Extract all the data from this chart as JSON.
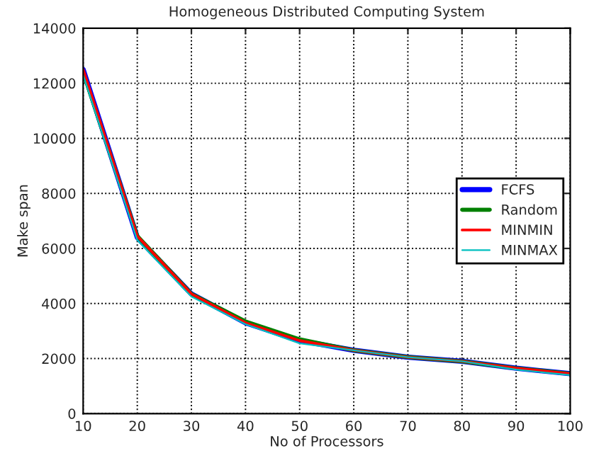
{
  "chart_data": {
    "type": "line",
    "title": "Homogeneous Distributed Computing System",
    "xlabel": "No of Processors",
    "ylabel": "Make span",
    "x": [
      10,
      20,
      30,
      40,
      50,
      60,
      70,
      80,
      90,
      100
    ],
    "series": [
      {
        "name": "FCFS",
        "color": "#0000ff",
        "values": [
          12500,
          6400,
          4350,
          3300,
          2650,
          2300,
          2050,
          1900,
          1650,
          1450
        ]
      },
      {
        "name": "Random",
        "color": "#008000",
        "values": [
          12400,
          6450,
          4350,
          3350,
          2700,
          2300,
          2050,
          1900,
          1650,
          1450
        ]
      },
      {
        "name": "MINMIN",
        "color": "#ff0000",
        "values": [
          12500,
          6450,
          4350,
          3300,
          2650,
          2300,
          2050,
          1900,
          1650,
          1450
        ]
      },
      {
        "name": "MINMAX",
        "color": "#00bfbf",
        "values": [
          12300,
          6300,
          4250,
          3250,
          2550,
          2300,
          2050,
          1900,
          1600,
          1400
        ]
      }
    ],
    "xlim": [
      10,
      100
    ],
    "xticks": [
      10,
      20,
      30,
      40,
      50,
      60,
      70,
      80,
      90,
      100
    ],
    "ylim": [
      0,
      14000
    ],
    "yticks": [
      0,
      2000,
      4000,
      6000,
      8000,
      10000,
      12000,
      14000
    ],
    "grid": true,
    "legend": "right",
    "marker": "none",
    "line_style": "solid"
  }
}
